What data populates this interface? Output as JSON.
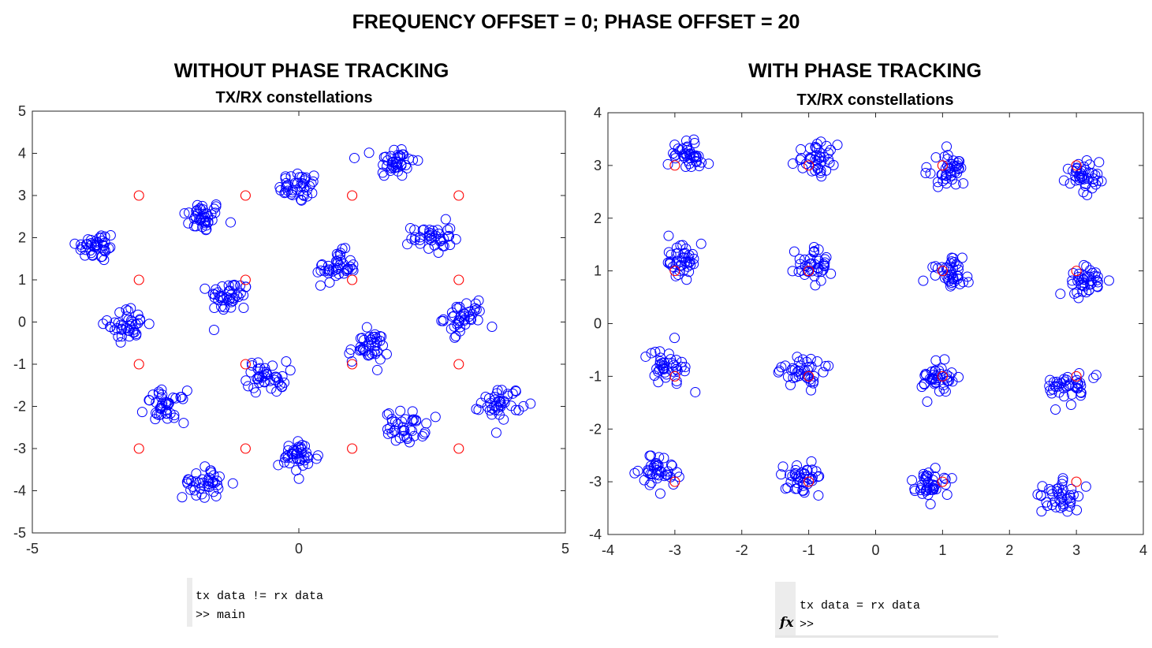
{
  "figure_title": "FREQUENCY OFFSET = 0; PHASE OFFSET = 20",
  "left_panel": {
    "heading": "WITHOUT PHASE TRACKING",
    "console": {
      "line1": "tx data != rx data",
      "line2": ">> main"
    }
  },
  "right_panel": {
    "heading": "WITH PHASE TRACKING",
    "console": {
      "line1": "tx data = rx data",
      "prompt": ">>",
      "fx_label": "fx"
    }
  },
  "colors": {
    "tx": "#ff0000",
    "rx": "#0000ff",
    "axes": "#262626"
  },
  "chart_data": [
    {
      "type": "scatter",
      "title": "TX/RX constellations",
      "xlim": [
        -5,
        5
      ],
      "ylim": [
        -5,
        5
      ],
      "xticks": [
        -5,
        0,
        5
      ],
      "yticks": [
        -5,
        -4,
        -3,
        -2,
        -1,
        0,
        1,
        2,
        3,
        4,
        5
      ],
      "grid": false,
      "marker": "circle-open",
      "series": [
        {
          "role": "tx",
          "points": [
            [
              -3,
              3
            ],
            [
              -1,
              3
            ],
            [
              1,
              3
            ],
            [
              3,
              3
            ],
            [
              -3,
              1
            ],
            [
              -1,
              1
            ],
            [
              1,
              1
            ],
            [
              3,
              1
            ],
            [
              -3,
              -1
            ],
            [
              -1,
              -1
            ],
            [
              1,
              -1
            ],
            [
              3,
              -1
            ],
            [
              -3,
              -3
            ],
            [
              -1,
              -3
            ],
            [
              1,
              -3
            ],
            [
              3,
              -3
            ]
          ]
        },
        {
          "role": "rx",
          "cluster_centers": [
            [
              -1.8,
              2.5
            ],
            [
              0,
              3.2
            ],
            [
              1.8,
              3.8
            ],
            [
              -3.8,
              1.8
            ],
            [
              -1.3,
              0.6
            ],
            [
              0.7,
              1.3
            ],
            [
              2.5,
              2.0
            ],
            [
              -3.2,
              -0.05
            ],
            [
              -0.6,
              -1.3
            ],
            [
              1.3,
              -0.6
            ],
            [
              3.1,
              0.1
            ],
            [
              -2.5,
              -2.0
            ],
            [
              0,
              -3.2
            ],
            [
              2.0,
              -2.5
            ],
            [
              -1.8,
              -3.8
            ],
            [
              3.8,
              -1.9
            ]
          ],
          "cluster_spread": 0.25,
          "points_per_cluster": 40
        }
      ]
    },
    {
      "type": "scatter",
      "title": "TX/RX constellations",
      "xlim": [
        -4,
        4
      ],
      "ylim": [
        -4,
        4
      ],
      "xticks": [
        -4,
        -3,
        -2,
        -1,
        0,
        1,
        2,
        3,
        4
      ],
      "yticks": [
        -4,
        -3,
        -2,
        -1,
        0,
        1,
        2,
        3,
        4
      ],
      "grid": false,
      "marker": "circle-open",
      "series": [
        {
          "role": "tx",
          "points": [
            [
              -3,
              3
            ],
            [
              -1,
              3
            ],
            [
              1,
              3
            ],
            [
              3,
              3
            ],
            [
              -3,
              1
            ],
            [
              -1,
              1
            ],
            [
              1,
              1
            ],
            [
              3,
              1
            ],
            [
              -3,
              -1
            ],
            [
              -1,
              -1
            ],
            [
              1,
              -1
            ],
            [
              3,
              -1
            ],
            [
              -3,
              -3
            ],
            [
              -1,
              -3
            ],
            [
              1,
              -3
            ],
            [
              3,
              -3
            ]
          ]
        },
        {
          "role": "rx",
          "cluster_centers": [
            [
              -2.8,
              3.2
            ],
            [
              -0.9,
              3.1
            ],
            [
              1.1,
              2.9
            ],
            [
              3.1,
              2.8
            ],
            [
              -2.9,
              1.2
            ],
            [
              -0.9,
              1.1
            ],
            [
              1.1,
              0.95
            ],
            [
              3.1,
              0.8
            ],
            [
              -3.1,
              -0.8
            ],
            [
              -1.1,
              -0.9
            ],
            [
              0.95,
              -1.05
            ],
            [
              2.9,
              -1.2
            ],
            [
              -3.2,
              -2.8
            ],
            [
              -1.1,
              -2.95
            ],
            [
              0.8,
              -3.05
            ],
            [
              2.8,
              -3.25
            ]
          ],
          "cluster_spread": 0.2,
          "points_per_cluster": 40
        }
      ]
    }
  ]
}
